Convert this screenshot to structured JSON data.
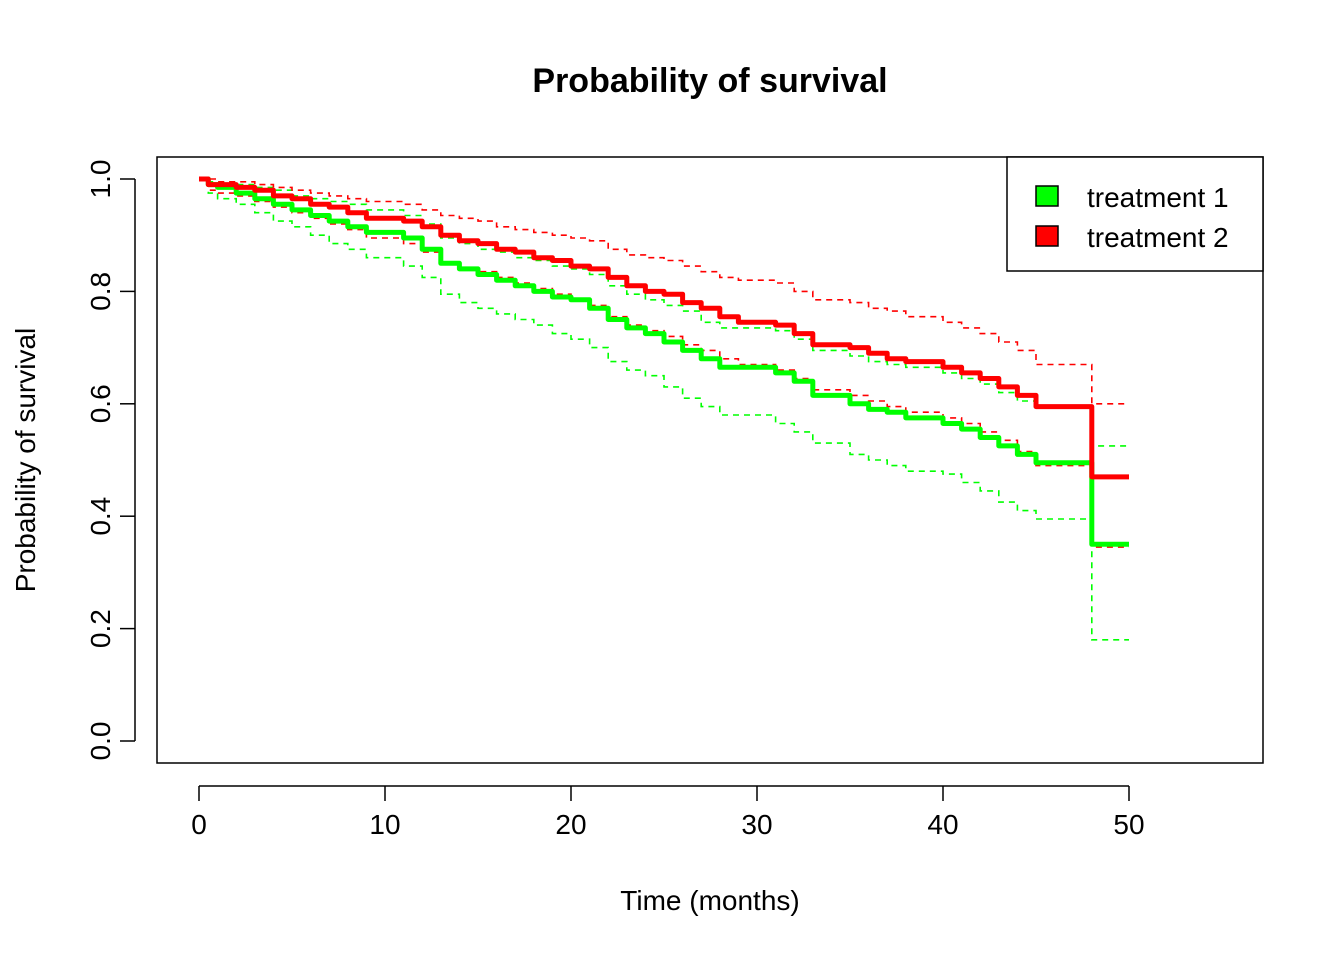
{
  "chart_data": {
    "type": "line",
    "title": "Probability of survival",
    "xlabel": "Time (months)",
    "ylabel": "Probability of survival",
    "xlim": [
      0,
      56
    ],
    "ylim": [
      0,
      1.0
    ],
    "xticks": [
      0,
      10,
      20,
      30,
      40,
      50
    ],
    "xtick_labels": [
      "0",
      "10",
      "20",
      "30",
      "40",
      "50"
    ],
    "yticks": [
      0,
      0.2,
      0.4,
      0.6,
      0.8,
      1.0
    ],
    "ytick_labels": [
      "0.0",
      "0.2",
      "0.4",
      "0.6",
      "0.8",
      "1.0"
    ],
    "grid": false,
    "legend_position": "top-right",
    "step": true,
    "series": [
      {
        "name": "treatment 1",
        "color": "#00ff00",
        "x": [
          0,
          0.5,
          1,
          2,
          3,
          4,
          5,
          6,
          7,
          8,
          9,
          11,
          12,
          13,
          14,
          15,
          16,
          17,
          18,
          19,
          20,
          21,
          22,
          23,
          24,
          25,
          26,
          27,
          28,
          29,
          31,
          32,
          33,
          35,
          36,
          37,
          38,
          40,
          41,
          42,
          43,
          44,
          45,
          48,
          50
        ],
        "values": [
          1.0,
          0.99,
          0.985,
          0.975,
          0.965,
          0.955,
          0.945,
          0.935,
          0.925,
          0.915,
          0.905,
          0.895,
          0.875,
          0.85,
          0.84,
          0.83,
          0.82,
          0.81,
          0.8,
          0.79,
          0.785,
          0.77,
          0.75,
          0.735,
          0.725,
          0.71,
          0.695,
          0.68,
          0.665,
          0.665,
          0.655,
          0.64,
          0.615,
          0.6,
          0.59,
          0.585,
          0.575,
          0.565,
          0.555,
          0.54,
          0.525,
          0.51,
          0.495,
          0.35,
          0.35
        ],
        "lower": [
          1.0,
          0.975,
          0.965,
          0.955,
          0.94,
          0.925,
          0.915,
          0.9,
          0.885,
          0.875,
          0.86,
          0.845,
          0.825,
          0.795,
          0.78,
          0.77,
          0.76,
          0.75,
          0.74,
          0.725,
          0.715,
          0.7,
          0.675,
          0.66,
          0.65,
          0.63,
          0.61,
          0.595,
          0.58,
          0.58,
          0.565,
          0.55,
          0.53,
          0.51,
          0.5,
          0.49,
          0.48,
          0.475,
          0.46,
          0.445,
          0.425,
          0.41,
          0.395,
          0.18,
          0.18
        ],
        "upper": [
          1.0,
          0.995,
          0.995,
          0.99,
          0.985,
          0.98,
          0.97,
          0.965,
          0.96,
          0.955,
          0.945,
          0.935,
          0.92,
          0.895,
          0.885,
          0.875,
          0.87,
          0.86,
          0.855,
          0.845,
          0.84,
          0.83,
          0.81,
          0.795,
          0.785,
          0.775,
          0.765,
          0.745,
          0.735,
          0.735,
          0.73,
          0.715,
          0.695,
          0.685,
          0.675,
          0.67,
          0.665,
          0.655,
          0.645,
          0.635,
          0.62,
          0.605,
          0.595,
          0.525,
          0.525
        ]
      },
      {
        "name": "treatment 2",
        "color": "#ff0000",
        "x": [
          0,
          0.5,
          1,
          2,
          3,
          4,
          5,
          6,
          7,
          8,
          9,
          11,
          12,
          13,
          14,
          15,
          16,
          17,
          18,
          19,
          20,
          21,
          22,
          23,
          24,
          25,
          26,
          27,
          28,
          29,
          31,
          32,
          33,
          35,
          36,
          37,
          38,
          40,
          41,
          42,
          43,
          44,
          45,
          48,
          50
        ],
        "values": [
          1.0,
          0.99,
          0.99,
          0.985,
          0.98,
          0.97,
          0.965,
          0.955,
          0.95,
          0.94,
          0.93,
          0.925,
          0.915,
          0.9,
          0.89,
          0.885,
          0.875,
          0.87,
          0.86,
          0.855,
          0.845,
          0.84,
          0.825,
          0.81,
          0.8,
          0.795,
          0.78,
          0.77,
          0.755,
          0.745,
          0.74,
          0.725,
          0.705,
          0.7,
          0.69,
          0.68,
          0.675,
          0.665,
          0.655,
          0.645,
          0.63,
          0.615,
          0.595,
          0.47,
          0.47
        ],
        "lower": [
          1.0,
          0.98,
          0.975,
          0.97,
          0.96,
          0.95,
          0.94,
          0.93,
          0.92,
          0.91,
          0.895,
          0.885,
          0.87,
          0.85,
          0.84,
          0.835,
          0.825,
          0.815,
          0.805,
          0.795,
          0.785,
          0.775,
          0.755,
          0.74,
          0.73,
          0.72,
          0.705,
          0.695,
          0.68,
          0.67,
          0.66,
          0.645,
          0.625,
          0.615,
          0.605,
          0.595,
          0.585,
          0.575,
          0.565,
          0.55,
          0.535,
          0.515,
          0.49,
          0.345,
          0.345
        ],
        "upper": [
          1.0,
          1.0,
          0.995,
          0.995,
          0.99,
          0.985,
          0.98,
          0.975,
          0.97,
          0.965,
          0.96,
          0.955,
          0.945,
          0.935,
          0.93,
          0.925,
          0.915,
          0.91,
          0.905,
          0.9,
          0.895,
          0.89,
          0.875,
          0.865,
          0.86,
          0.855,
          0.845,
          0.835,
          0.825,
          0.82,
          0.815,
          0.8,
          0.785,
          0.78,
          0.77,
          0.765,
          0.755,
          0.745,
          0.735,
          0.725,
          0.71,
          0.695,
          0.67,
          0.6,
          0.6
        ]
      }
    ]
  }
}
